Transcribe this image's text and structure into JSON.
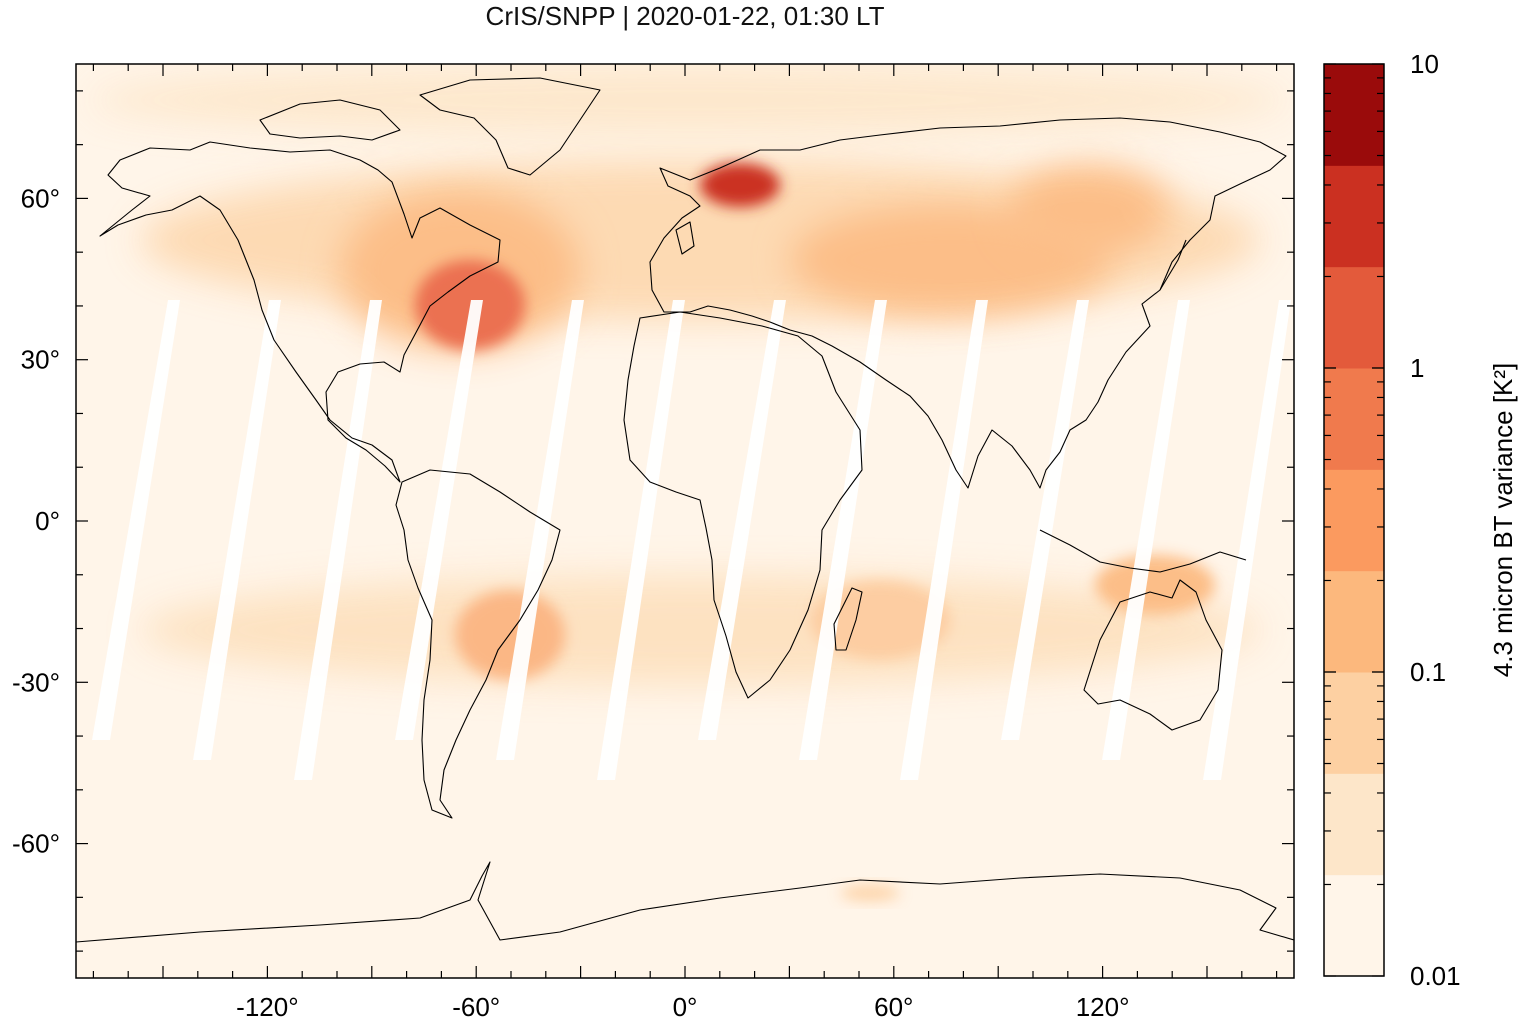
{
  "title": "CrIS/SNPP | 2020-01-22, 01:30 LT",
  "map": {
    "lon_range": [
      -175,
      175
    ],
    "lat_range": [
      -85,
      85
    ],
    "x_ticks": [
      {
        "value": -120,
        "label": "-120°"
      },
      {
        "value": -60,
        "label": "-60°"
      },
      {
        "value": 0,
        "label": "0°"
      },
      {
        "value": 60,
        "label": "60°"
      },
      {
        "value": 120,
        "label": "120°"
      }
    ],
    "y_ticks": [
      {
        "value": 60,
        "label": "60°"
      },
      {
        "value": 30,
        "label": "30°"
      },
      {
        "value": 0,
        "label": "0°"
      },
      {
        "value": -30,
        "label": "-30°"
      },
      {
        "value": -60,
        "label": "-60°"
      }
    ],
    "background_color": "#fff5e9",
    "coastline_color": "#000000"
  },
  "colorbar": {
    "label": "4.3 micron BT variance [K²]",
    "scale": "log",
    "range": [
      0.01,
      10
    ],
    "ticks": [
      {
        "value": 10,
        "label": "10"
      },
      {
        "value": 1,
        "label": "1"
      },
      {
        "value": 0.1,
        "label": "0.1"
      },
      {
        "value": 0.01,
        "label": "0.01"
      }
    ],
    "colors": [
      "#fff5e9",
      "#fde6c9",
      "#fdd0a2",
      "#fcb87d",
      "#fb9a5f",
      "#f07a4d",
      "#e35a3b",
      "#cb3021",
      "#9a0b0b"
    ]
  },
  "hotspots": [
    {
      "name": "scandinavia",
      "lon": 15,
      "lat": 64,
      "level": 8
    },
    {
      "name": "north-atlantic-west",
      "lon": -60,
      "lat": 40,
      "level": 7
    },
    {
      "name": "central-asia",
      "lon": 90,
      "lat": 50,
      "level": 5
    },
    {
      "name": "south-america",
      "lon": -50,
      "lat": -22,
      "level": 5
    },
    {
      "name": "southern-africa",
      "lon": 35,
      "lat": -22,
      "level": 3
    },
    {
      "name": "australia-north",
      "lon": 125,
      "lat": -13,
      "level": 4
    }
  ]
}
